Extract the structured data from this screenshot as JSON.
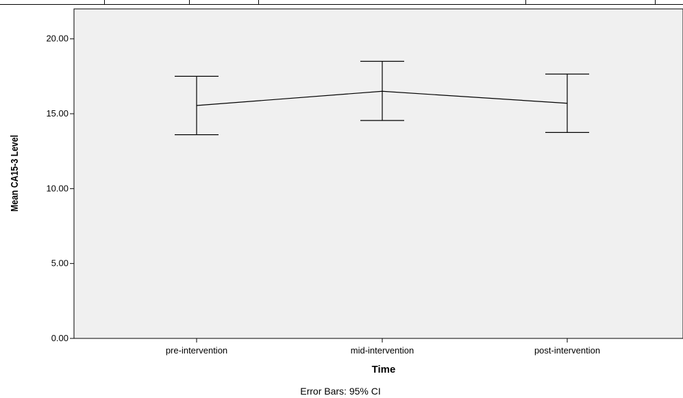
{
  "chart_data": {
    "type": "line",
    "title": "",
    "xlabel": "Time",
    "ylabel": "Mean CA15-3 Level",
    "categories": [
      "pre-intervention",
      "mid-intervention",
      "post-intervention"
    ],
    "series": [
      {
        "values": [
          15.55,
          16.5,
          15.7
        ],
        "ci_lower": [
          13.6,
          14.55,
          13.75
        ],
        "ci_upper": [
          17.5,
          18.5,
          17.65
        ]
      }
    ],
    "ylim": [
      0,
      22
    ],
    "yticks": [
      0,
      5,
      10,
      15,
      20
    ],
    "ytick_labels": [
      "0.00",
      "5.00",
      "10.00",
      "15.00",
      "20.00"
    ],
    "grid": false,
    "legend": "none",
    "footnote": "Error Bars: 95% CI",
    "colors": {
      "plot_background": "#f0f0f0",
      "line": "#000000",
      "axis": "#000000"
    }
  }
}
